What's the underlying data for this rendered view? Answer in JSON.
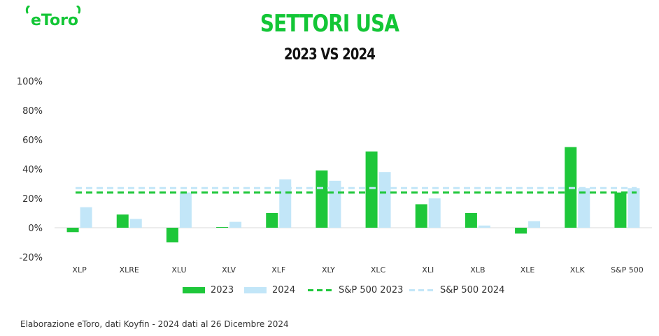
{
  "brand": {
    "name": "eToro",
    "color": "#13c636"
  },
  "header": {
    "title": "SETTORI USA",
    "subtitle": "2023 VS 2024"
  },
  "footer": {
    "note": "Elaborazione eToro, dati Koyfin - 2024 dati al 26 Dicembre 2024"
  },
  "colors": {
    "s2023": "#1ec73a",
    "s2024": "#c2e6f8",
    "ref2023": "#1ec73a",
    "ref2024": "#c2e6f8",
    "axis": "#d9d9d9",
    "text": "#333333"
  },
  "chart_data": {
    "type": "bar",
    "title": "SETTORI USA",
    "subtitle": "2023 VS 2024",
    "categories": [
      "XLP",
      "XLRE",
      "XLU",
      "XLV",
      "XLF",
      "XLY",
      "XLC",
      "XLI",
      "XLB",
      "XLE",
      "XLK",
      "S&P 500"
    ],
    "series": [
      {
        "name": "2023",
        "values": [
          -3,
          9,
          -10,
          0.5,
          10,
          39,
          52,
          16,
          10,
          -4,
          55,
          24
        ]
      },
      {
        "name": "2024",
        "values": [
          14,
          6,
          24,
          4,
          33,
          32,
          38,
          20,
          1.5,
          4.5,
          27,
          27
        ]
      }
    ],
    "reference_lines": [
      {
        "name": "S&P 500 2023",
        "value": 24
      },
      {
        "name": "S&P 500 2024",
        "value": 27
      }
    ],
    "ylim": [
      -20,
      100
    ],
    "yticks": [
      "100%",
      "80%",
      "60%",
      "40%",
      "20%",
      "0%",
      "-20%"
    ],
    "ytick_values": [
      100,
      80,
      60,
      40,
      20,
      0,
      -20
    ],
    "grid": false,
    "legend_position": "bottom"
  }
}
